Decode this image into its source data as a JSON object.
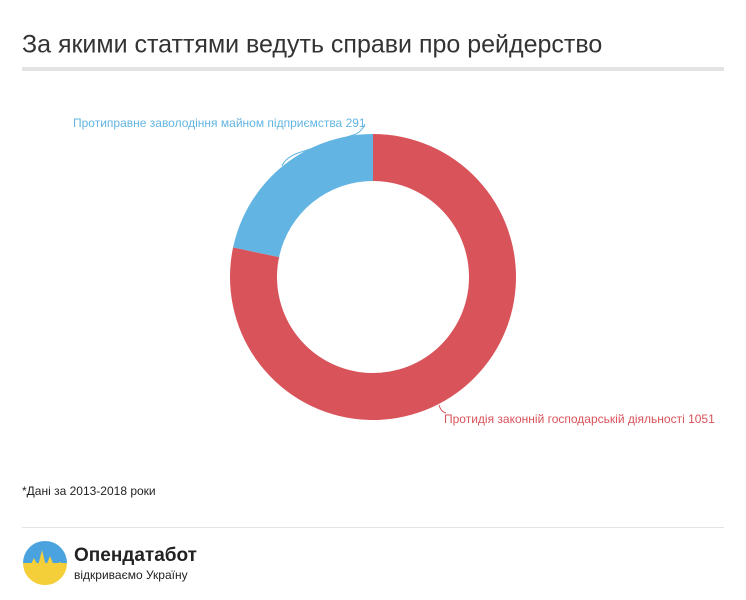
{
  "chart_data": {
    "type": "donut",
    "title": "За якими статтями ведуть справи про рейдерство",
    "categories": [
      "Протидія законній господарській діяльності",
      "Протиправне заволодіння майном підприємства"
    ],
    "values": [
      1051,
      291
    ],
    "colors": [
      "#d9535a",
      "#62b5e2"
    ]
  },
  "footnote": "*Дані за 2013-2018 роки",
  "logo": {
    "name": "Опендатабот",
    "tagline": "відкриваємо Україну"
  }
}
